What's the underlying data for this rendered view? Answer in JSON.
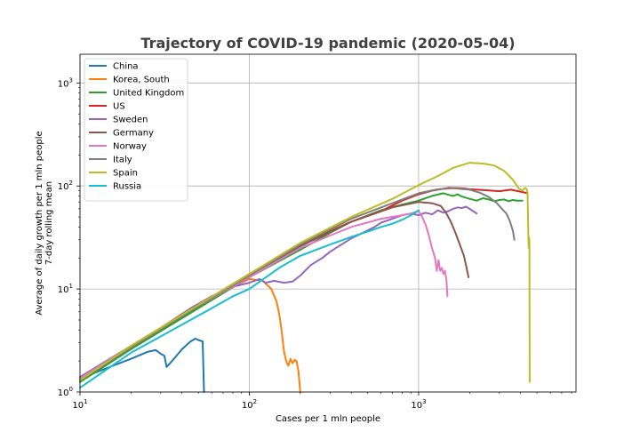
{
  "chart_data": {
    "type": "line",
    "title": "Trajectory of COVID-19 pandemic (2020-05-04)",
    "xlabel": "Cases per 1 mln people",
    "ylabel_line1": "Average of daily growth per 1 mln people",
    "ylabel_line2": "7-day rolling mean",
    "x_scale": "log",
    "y_scale": "log",
    "xlim": [
      10,
      8500
    ],
    "ylim": [
      1,
      1900
    ],
    "grid": true,
    "legend_position": "top-left",
    "x_ticks": [
      {
        "value": 10,
        "base": "10",
        "exp": "1"
      },
      {
        "value": 100,
        "base": "10",
        "exp": "2"
      },
      {
        "value": 1000,
        "base": "10",
        "exp": "3"
      }
    ],
    "y_ticks": [
      {
        "value": 1,
        "base": "10",
        "exp": "0"
      },
      {
        "value": 10,
        "base": "10",
        "exp": "1"
      },
      {
        "value": 100,
        "base": "10",
        "exp": "2"
      },
      {
        "value": 1000,
        "base": "10",
        "exp": "3"
      }
    ],
    "series": [
      {
        "name": "China",
        "color": "#1f77b4",
        "points": [
          [
            10,
            1.35
          ],
          [
            15,
            1.75
          ],
          [
            20,
            2.1
          ],
          [
            25,
            2.45
          ],
          [
            28,
            2.55
          ],
          [
            30,
            2.35
          ],
          [
            31.5,
            2.25
          ],
          [
            32.5,
            1.75
          ],
          [
            35,
            2.0
          ],
          [
            40,
            2.6
          ],
          [
            45,
            3.1
          ],
          [
            48,
            3.3
          ],
          [
            50,
            3.2
          ],
          [
            53,
            3.1
          ],
          [
            54,
            1.0
          ]
        ]
      },
      {
        "name": "Korea, South",
        "color": "#ff7f0e",
        "points": [
          [
            10,
            1.3
          ],
          [
            15,
            2.0
          ],
          [
            20,
            2.75
          ],
          [
            30,
            4.1
          ],
          [
            50,
            6.6
          ],
          [
            80,
            10.5
          ],
          [
            100,
            12.5
          ],
          [
            120,
            12.0
          ],
          [
            135,
            10.0
          ],
          [
            145,
            7.5
          ],
          [
            150,
            5.8
          ],
          [
            155,
            4.0
          ],
          [
            160,
            2.5
          ],
          [
            165,
            2.0
          ],
          [
            170,
            1.8
          ],
          [
            175,
            2.1
          ],
          [
            180,
            1.9
          ],
          [
            185,
            2.05
          ],
          [
            190,
            2.0
          ],
          [
            195,
            1.6
          ],
          [
            200,
            1.0
          ]
        ]
      },
      {
        "name": "United Kingdom",
        "color": "#2ca02c",
        "points": [
          [
            10,
            1.25
          ],
          [
            20,
            2.6
          ],
          [
            50,
            6.5
          ],
          [
            100,
            13
          ],
          [
            200,
            24
          ],
          [
            300,
            35
          ],
          [
            400,
            45
          ],
          [
            600,
            58
          ],
          [
            800,
            66
          ],
          [
            1000,
            72
          ],
          [
            1200,
            80
          ],
          [
            1400,
            85
          ],
          [
            1500,
            82
          ],
          [
            1600,
            80
          ],
          [
            1700,
            83
          ],
          [
            1800,
            79
          ],
          [
            2000,
            75
          ],
          [
            2200,
            72
          ],
          [
            2400,
            76
          ],
          [
            2600,
            74
          ],
          [
            2800,
            71
          ],
          [
            3000,
            73
          ],
          [
            3200,
            74
          ],
          [
            3400,
            71
          ],
          [
            3600,
            73
          ],
          [
            3800,
            72
          ],
          [
            4100,
            72
          ]
        ]
      },
      {
        "name": "US",
        "color": "#d62728",
        "points": [
          [
            10,
            1.3
          ],
          [
            20,
            2.8
          ],
          [
            50,
            7.0
          ],
          [
            100,
            14
          ],
          [
            200,
            27
          ],
          [
            400,
            45
          ],
          [
            600,
            57
          ],
          [
            800,
            72
          ],
          [
            1000,
            83
          ],
          [
            1200,
            90
          ],
          [
            1500,
            96
          ],
          [
            1800,
            95
          ],
          [
            2000,
            93
          ],
          [
            2500,
            91
          ],
          [
            3000,
            89
          ],
          [
            3500,
            92
          ],
          [
            4000,
            88
          ],
          [
            4400,
            85
          ]
        ]
      },
      {
        "name": "Sweden",
        "color": "#9467bd",
        "points": [
          [
            10,
            1.4
          ],
          [
            20,
            2.8
          ],
          [
            30,
            4.2
          ],
          [
            45,
            6.5
          ],
          [
            60,
            8.5
          ],
          [
            80,
            10.5
          ],
          [
            100,
            11.5
          ],
          [
            115,
            12.5
          ],
          [
            125,
            11.5
          ],
          [
            140,
            12
          ],
          [
            160,
            11.5
          ],
          [
            180,
            11.8
          ],
          [
            200,
            13.5
          ],
          [
            230,
            17
          ],
          [
            270,
            20
          ],
          [
            300,
            23
          ],
          [
            350,
            27
          ],
          [
            400,
            31
          ],
          [
            450,
            34
          ],
          [
            500,
            37
          ],
          [
            550,
            40
          ],
          [
            600,
            44
          ],
          [
            700,
            48
          ],
          [
            800,
            52
          ],
          [
            900,
            54
          ],
          [
            1000,
            52
          ],
          [
            1100,
            55
          ],
          [
            1200,
            53
          ],
          [
            1300,
            58
          ],
          [
            1400,
            55
          ],
          [
            1500,
            57
          ],
          [
            1600,
            60
          ],
          [
            1700,
            62
          ],
          [
            1800,
            61
          ],
          [
            1900,
            63
          ],
          [
            2000,
            60
          ],
          [
            2100,
            57
          ],
          [
            2200,
            54
          ]
        ]
      },
      {
        "name": "Germany",
        "color": "#8c564b",
        "points": [
          [
            10,
            1.3
          ],
          [
            20,
            2.7
          ],
          [
            50,
            6.8
          ],
          [
            100,
            13
          ],
          [
            200,
            26
          ],
          [
            400,
            45
          ],
          [
            700,
            62
          ],
          [
            1000,
            70
          ],
          [
            1200,
            68
          ],
          [
            1350,
            64
          ],
          [
            1450,
            55
          ],
          [
            1550,
            45
          ],
          [
            1650,
            35
          ],
          [
            1750,
            27
          ],
          [
            1850,
            21
          ],
          [
            1920,
            16
          ],
          [
            1970,
            13
          ]
        ]
      },
      {
        "name": "Norway",
        "color": "#e377c2",
        "points": [
          [
            10,
            1.35
          ],
          [
            20,
            2.8
          ],
          [
            50,
            6.8
          ],
          [
            100,
            13
          ],
          [
            200,
            25
          ],
          [
            300,
            33
          ],
          [
            400,
            40
          ],
          [
            600,
            48
          ],
          [
            800,
            52
          ],
          [
            900,
            54
          ],
          [
            1000,
            57
          ],
          [
            1050,
            50
          ],
          [
            1100,
            42
          ],
          [
            1150,
            33
          ],
          [
            1200,
            25
          ],
          [
            1250,
            20
          ],
          [
            1280,
            15
          ],
          [
            1310,
            19
          ],
          [
            1340,
            15
          ],
          [
            1370,
            16
          ],
          [
            1400,
            14
          ],
          [
            1430,
            15
          ],
          [
            1460,
            12
          ],
          [
            1480,
            8.5
          ]
        ]
      },
      {
        "name": "Italy",
        "color": "#7f7f7f",
        "points": [
          [
            10,
            1.3
          ],
          [
            20,
            2.7
          ],
          [
            50,
            6.8
          ],
          [
            100,
            13.5
          ],
          [
            200,
            27
          ],
          [
            400,
            48
          ],
          [
            700,
            68
          ],
          [
            1000,
            85
          ],
          [
            1300,
            93
          ],
          [
            1600,
            95
          ],
          [
            2000,
            92
          ],
          [
            2300,
            86
          ],
          [
            2600,
            78
          ],
          [
            2900,
            68
          ],
          [
            3100,
            60
          ],
          [
            3300,
            54
          ],
          [
            3450,
            46
          ],
          [
            3600,
            37
          ],
          [
            3680,
            30
          ]
        ]
      },
      {
        "name": "Spain",
        "color": "#bcbd22",
        "points": [
          [
            10,
            1.3
          ],
          [
            20,
            2.8
          ],
          [
            50,
            7.0
          ],
          [
            100,
            14
          ],
          [
            200,
            28
          ],
          [
            400,
            50
          ],
          [
            700,
            75
          ],
          [
            1000,
            102
          ],
          [
            1300,
            125
          ],
          [
            1600,
            150
          ],
          [
            2000,
            168
          ],
          [
            2400,
            165
          ],
          [
            2800,
            158
          ],
          [
            3200,
            140
          ],
          [
            3600,
            115
          ],
          [
            3900,
            95
          ],
          [
            4100,
            90
          ],
          [
            4250,
            96
          ],
          [
            4350,
            93
          ],
          [
            4400,
            85
          ],
          [
            4430,
            45
          ],
          [
            4450,
            30
          ],
          [
            4470,
            25
          ],
          [
            4490,
            32
          ],
          [
            4510,
            28
          ],
          [
            4530,
            1.25
          ]
        ]
      },
      {
        "name": "Russia",
        "color": "#17becf",
        "points": [
          [
            10,
            1.1
          ],
          [
            20,
            2.4
          ],
          [
            40,
            4.5
          ],
          [
            60,
            6.5
          ],
          [
            80,
            8.5
          ],
          [
            100,
            10
          ],
          [
            150,
            16
          ],
          [
            200,
            21
          ],
          [
            300,
            27
          ],
          [
            400,
            32
          ],
          [
            500,
            36
          ],
          [
            600,
            40
          ],
          [
            700,
            43
          ],
          [
            800,
            47
          ],
          [
            900,
            52
          ],
          [
            1000,
            58
          ]
        ]
      }
    ]
  }
}
